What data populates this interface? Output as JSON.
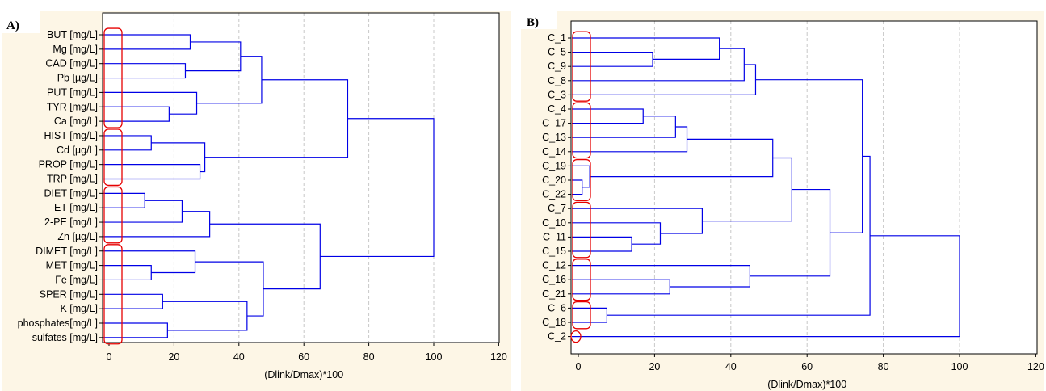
{
  "chart_data": [
    {
      "type": "dendrogram",
      "panel_label": "A)",
      "xlabel": "(Dlink/Dmax)*100",
      "xlim": [
        0,
        120
      ],
      "xticks": [
        0,
        20,
        40,
        60,
        80,
        100,
        120
      ],
      "grid": "vertical dashed",
      "leaves": [
        "BUT [mg/L]",
        "Mg [mg/L]",
        "CAD [mg/L]",
        "Pb [µg/L]",
        "PUT [mg/L]",
        "TYR [mg/L]",
        "Ca [mg/L]",
        "HIST [mg/L]",
        "Cd [µg/L]",
        "PROP [mg/L]",
        "TRP [mg/L]",
        "DIET [mg/L]",
        "ET [mg/L]",
        "2-PE [mg/L]",
        "Zn [µg/L]",
        "DIMET [mg/L]",
        "MET [mg/L]",
        "Fe [mg/L]",
        "SPER [mg/L]",
        "K [mg/L]",
        "phosphates[mg/L]",
        "sulfates [mg/L]"
      ],
      "merges": [
        [
          0,
          1,
          25
        ],
        [
          2,
          3,
          23.5
        ],
        [
          22,
          23,
          40.5
        ],
        [
          5,
          6,
          18.5
        ],
        [
          4,
          25,
          27
        ],
        [
          24,
          26,
          47
        ],
        [
          7,
          8,
          13
        ],
        [
          9,
          10,
          28
        ],
        [
          28,
          29,
          29.5
        ],
        [
          27,
          30,
          73.5
        ],
        [
          11,
          12,
          11
        ],
        [
          32,
          13,
          22.5
        ],
        [
          33,
          14,
          31
        ],
        [
          16,
          17,
          13
        ],
        [
          15,
          35,
          26.5
        ],
        [
          18,
          19,
          16.5
        ],
        [
          20,
          21,
          18
        ],
        [
          37,
          38,
          42.5
        ],
        [
          36,
          39,
          47.5
        ],
        [
          34,
          40,
          65
        ],
        [
          31,
          41,
          100
        ]
      ],
      "highlight_groups": [
        [
          0,
          6
        ],
        [
          7,
          10
        ],
        [
          11,
          14
        ],
        [
          15,
          21
        ]
      ]
    },
    {
      "type": "dendrogram",
      "panel_label": "B)",
      "xlabel": "(Dlink/Dmax)*100",
      "xlim": [
        0,
        120
      ],
      "xticks": [
        0,
        20,
        40,
        60,
        80,
        100,
        120
      ],
      "grid": "vertical dashed",
      "leaves": [
        "C_1",
        "C_5",
        "C_9",
        "C_8",
        "C_3",
        "C_4",
        "C_17",
        "C_13",
        "C_14",
        "C_19",
        "C_20",
        "C_22",
        "C_7",
        "C_10",
        "C_11",
        "C_15",
        "C_12",
        "C_16",
        "C_21",
        "C_6",
        "C_18",
        "C_2"
      ],
      "merges": [
        [
          1,
          2,
          19.5
        ],
        [
          0,
          22,
          37
        ],
        [
          23,
          3,
          43.5
        ],
        [
          24,
          4,
          46.5
        ],
        [
          5,
          6,
          17
        ],
        [
          26,
          7,
          25.5
        ],
        [
          27,
          8,
          28.5
        ],
        [
          10,
          11,
          1
        ],
        [
          9,
          29,
          3
        ],
        [
          28,
          30,
          51
        ],
        [
          14,
          15,
          14
        ],
        [
          13,
          32,
          21.5
        ],
        [
          12,
          33,
          32.5
        ],
        [
          31,
          34,
          56
        ],
        [
          17,
          18,
          24
        ],
        [
          16,
          36,
          45
        ],
        [
          35,
          37,
          66
        ],
        [
          25,
          38,
          74.5
        ],
        [
          19,
          20,
          7.5
        ],
        [
          39,
          40,
          76.5
        ],
        [
          41,
          21,
          100
        ]
      ],
      "highlight_groups": [
        [
          0,
          4
        ],
        [
          5,
          8
        ],
        [
          9,
          11
        ],
        [
          12,
          15
        ],
        [
          16,
          18
        ],
        [
          19,
          20
        ]
      ],
      "highlight_single": [
        21
      ]
    }
  ]
}
